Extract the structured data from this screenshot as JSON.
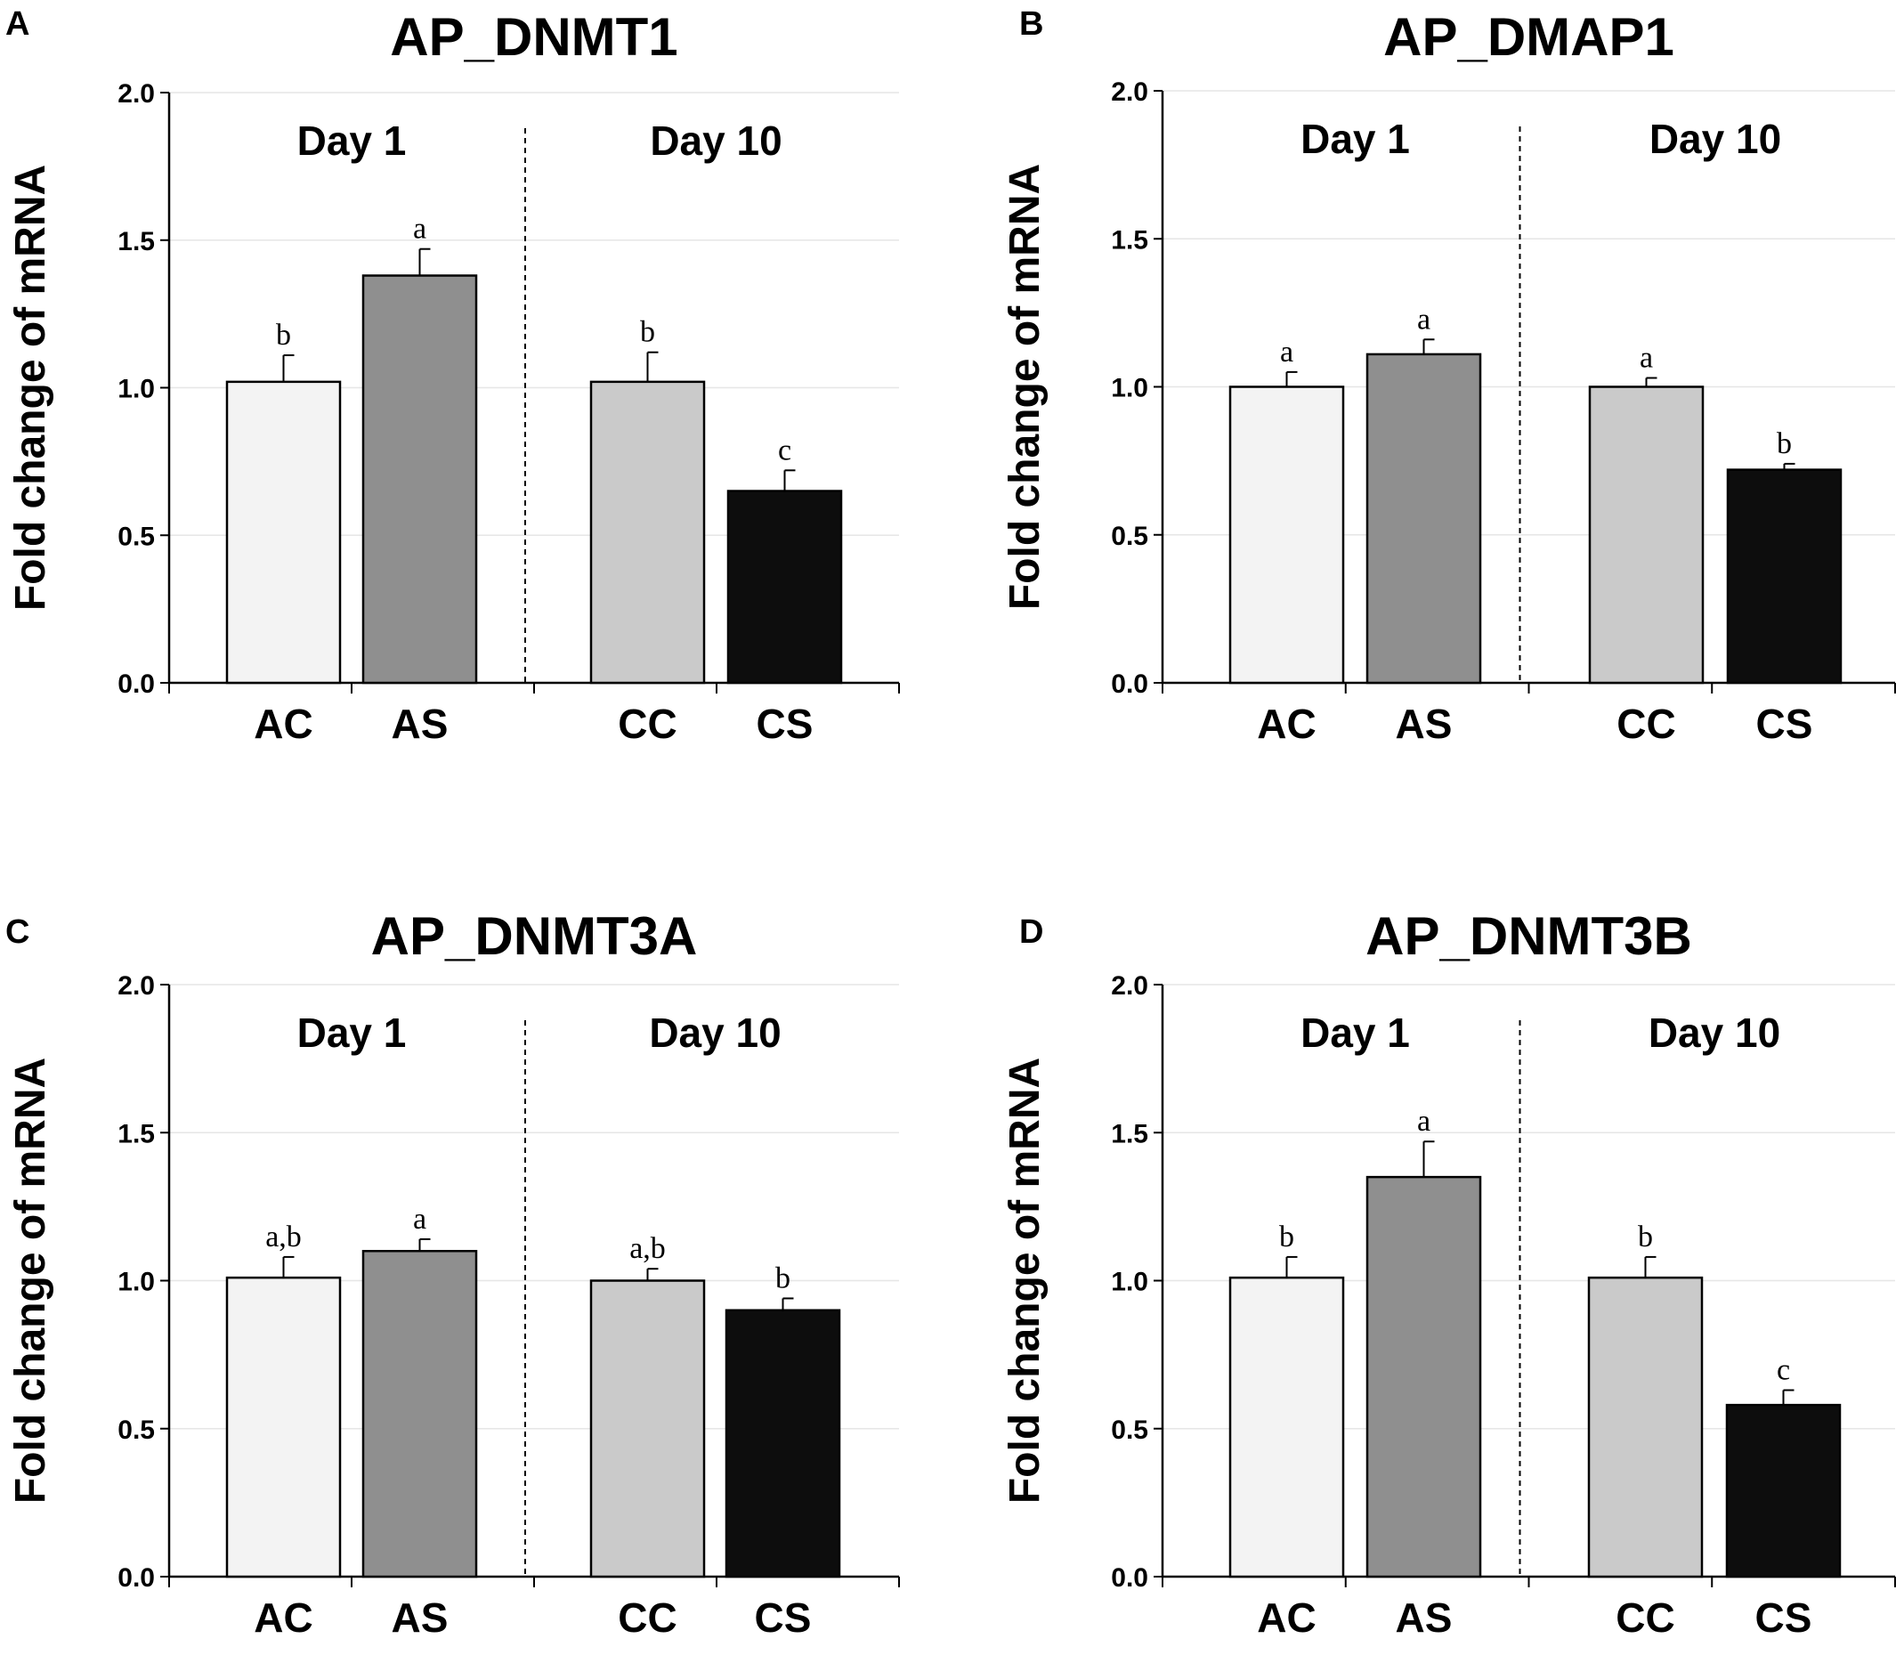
{
  "figure": {
    "panels": [
      "A",
      "B",
      "C",
      "D"
    ]
  },
  "chart_data": [
    {
      "type": "bar",
      "panel": "A",
      "title": "AP_DNMT1",
      "ylabel": "Fold change of mRNA",
      "ylim": [
        0,
        2.0
      ],
      "yticks": [
        "0.0",
        "0.5",
        "1.0",
        "1.5",
        "2.0"
      ],
      "groups": [
        "Day 1",
        "Day 10"
      ],
      "categories": [
        "AC",
        "AS",
        "CC",
        "CS"
      ],
      "values": [
        1.02,
        1.38,
        1.02,
        0.65
      ],
      "errors": [
        0.09,
        0.09,
        0.1,
        0.07
      ],
      "significance": [
        "b",
        "a",
        "b",
        "c"
      ],
      "colors": [
        "#f3f3f3",
        "#8f8f8f",
        "#cacaca",
        "#0d0d0d"
      ]
    },
    {
      "type": "bar",
      "panel": "B",
      "title": "AP_DMAP1",
      "ylabel": "Fold change of mRNA",
      "ylim": [
        0,
        2.0
      ],
      "yticks": [
        "0.0",
        "0.5",
        "1.0",
        "1.5",
        "2.0"
      ],
      "groups": [
        "Day 1",
        "Day 10"
      ],
      "categories": [
        "AC",
        "AS",
        "CC",
        "CS"
      ],
      "values": [
        1.0,
        1.11,
        1.0,
        0.72
      ],
      "errors": [
        0.05,
        0.05,
        0.03,
        0.02
      ],
      "significance": [
        "a",
        "a",
        "a",
        "b"
      ],
      "colors": [
        "#f3f3f3",
        "#8f8f8f",
        "#cacaca",
        "#0d0d0d"
      ]
    },
    {
      "type": "bar",
      "panel": "C",
      "title": "AP_DNMT3A",
      "ylabel": "Fold change of mRNA",
      "ylim": [
        0,
        2.0
      ],
      "yticks": [
        "0.0",
        "0.5",
        "1.0",
        "1.5",
        "2.0"
      ],
      "groups": [
        "Day 1",
        "Day 10"
      ],
      "categories": [
        "AC",
        "AS",
        "CC",
        "CS"
      ],
      "values": [
        1.01,
        1.1,
        1.0,
        0.9
      ],
      "errors": [
        0.07,
        0.04,
        0.04,
        0.04
      ],
      "significance": [
        "a,b",
        "a",
        "a,b",
        "b"
      ],
      "colors": [
        "#f3f3f3",
        "#8f8f8f",
        "#cacaca",
        "#0d0d0d"
      ]
    },
    {
      "type": "bar",
      "panel": "D",
      "title": "AP_DNMT3B",
      "ylabel": "Fold change of mRNA",
      "ylim": [
        0,
        2.0
      ],
      "yticks": [
        "0.0",
        "0.5",
        "1.0",
        "1.5",
        "2.0"
      ],
      "groups": [
        "Day 1",
        "Day 10"
      ],
      "categories": [
        "AC",
        "AS",
        "CC",
        "CS"
      ],
      "values": [
        1.01,
        1.35,
        1.01,
        0.58
      ],
      "errors": [
        0.07,
        0.12,
        0.07,
        0.05
      ],
      "significance": [
        "b",
        "a",
        "b",
        "c"
      ],
      "colors": [
        "#f3f3f3",
        "#8f8f8f",
        "#cacaca",
        "#0d0d0d"
      ]
    }
  ]
}
